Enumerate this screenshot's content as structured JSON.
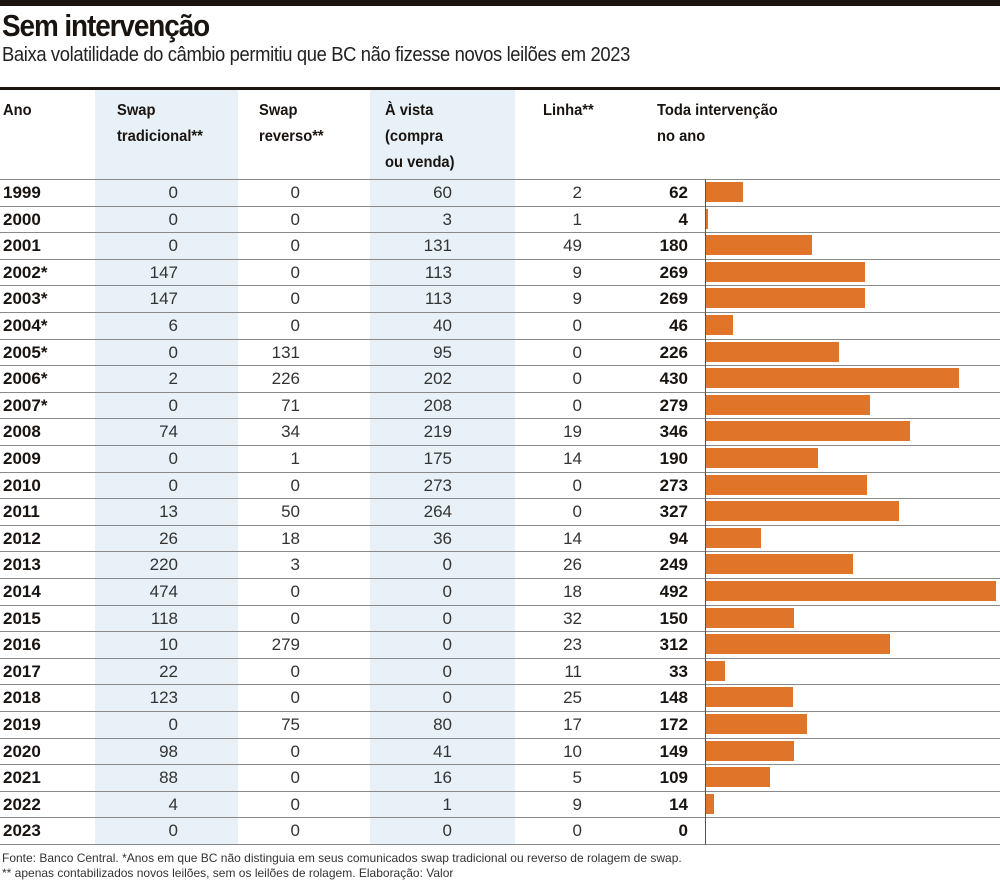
{
  "title": "Sem intervenção",
  "subtitle": "Baixa volatilidade do câmbio permitiu que BC não fizesse novos leilões em 2023",
  "headers": {
    "ano": "Ano",
    "swap_trad": [
      "Swap",
      "tradicional**"
    ],
    "swap_rev": [
      "Swap",
      "reverso**"
    ],
    "a_vista": [
      "À vista",
      "(compra",
      "ou venda)"
    ],
    "linha": "Linha**",
    "total": [
      "Toda intervenção",
      "no ano"
    ]
  },
  "footer": [
    "Fonte: Banco Central. *Anos em que BC não distinguia em seus comunicados swap tradicional ou reverso de rolagem de swap.",
    "** apenas contabilizados novos leilões, sem os leilões de rolagem. Elaboração: Valor"
  ],
  "colors": {
    "bar": "#e07428",
    "shade": "#e8f1f7"
  },
  "chart_data": {
    "type": "table",
    "columns": [
      "Ano",
      "Swap tradicional**",
      "Swap reverso**",
      "À vista (compra ou venda)",
      "Linha**",
      "Toda intervenção no ano"
    ],
    "rows": [
      [
        "1999",
        0,
        0,
        60,
        2,
        62
      ],
      [
        "2000",
        0,
        0,
        3,
        1,
        4
      ],
      [
        "2001",
        0,
        0,
        131,
        49,
        180
      ],
      [
        "2002*",
        147,
        0,
        113,
        9,
        269
      ],
      [
        "2003*",
        147,
        0,
        113,
        9,
        269
      ],
      [
        "2004*",
        6,
        0,
        40,
        0,
        46
      ],
      [
        "2005*",
        0,
        131,
        95,
        0,
        226
      ],
      [
        "2006*",
        2,
        226,
        202,
        0,
        430
      ],
      [
        "2007*",
        0,
        71,
        208,
        0,
        279
      ],
      [
        "2008",
        74,
        34,
        219,
        19,
        346
      ],
      [
        "2009",
        0,
        1,
        175,
        14,
        190
      ],
      [
        "2010",
        0,
        0,
        273,
        0,
        273
      ],
      [
        "2011",
        13,
        50,
        264,
        0,
        327
      ],
      [
        "2012",
        26,
        18,
        36,
        14,
        94
      ],
      [
        "2013",
        220,
        3,
        0,
        26,
        249
      ],
      [
        "2014",
        474,
        0,
        0,
        18,
        492
      ],
      [
        "2015",
        118,
        0,
        0,
        32,
        150
      ],
      [
        "2016",
        10,
        279,
        0,
        23,
        312
      ],
      [
        "2017",
        22,
        0,
        0,
        11,
        33
      ],
      [
        "2018",
        123,
        0,
        0,
        25,
        148
      ],
      [
        "2019",
        0,
        75,
        80,
        17,
        172
      ],
      [
        "2020",
        98,
        0,
        41,
        10,
        149
      ],
      [
        "2021",
        88,
        0,
        16,
        5,
        109
      ],
      [
        "2022",
        4,
        0,
        1,
        9,
        14
      ],
      [
        "2023",
        0,
        0,
        0,
        0,
        0
      ]
    ],
    "bar_column": "Toda intervenção no ano",
    "bar_max": 492
  }
}
